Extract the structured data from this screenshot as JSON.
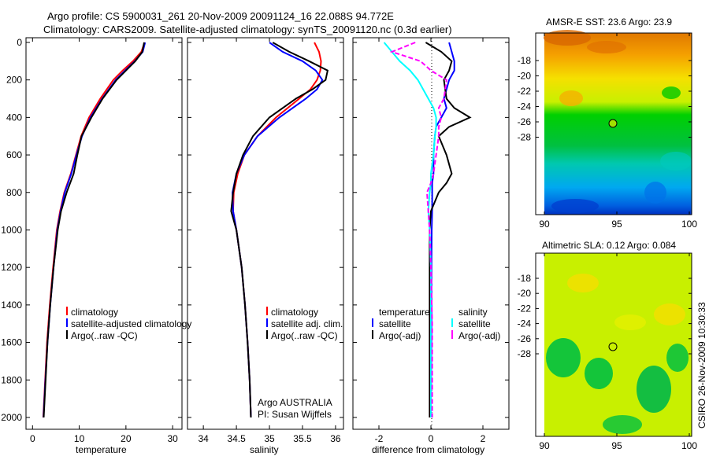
{
  "header": {
    "line1": "Argo profile: CS 5900031_261 20-Nov-2009 20091124_16 22.088S 94.772E",
    "line2": "Climatology: CARS2009. Satellite-adjusted climatology: synTS_20091120.nc (0.3d earlier)"
  },
  "side_stamp": "CSIRO 26-Nov-2009 10:30:33",
  "credit": {
    "line1": "Argo AUSTRALIA",
    "line2": "PI: Susan Wijffels"
  },
  "chart_data": [
    {
      "type": "line",
      "xlabel": "temperature",
      "ylabel": "",
      "xlim": [
        -1.4,
        32
      ],
      "ylim": [
        2063,
        -25
      ],
      "xticks": [
        "0",
        "10",
        "20",
        "30"
      ],
      "xtick_values": [
        0,
        10,
        20,
        30
      ],
      "yticks": [
        "0",
        "200",
        "400",
        "600",
        "800",
        "1000",
        "1200",
        "1400",
        "1600",
        "1800",
        "2000"
      ],
      "ytick_values": [
        0,
        200,
        400,
        600,
        800,
        1000,
        1200,
        1400,
        1600,
        1800,
        2000
      ],
      "legend": [
        "climatology",
        "satellite-adjusted climatology",
        "Argo(..raw -QC)"
      ],
      "depth": [
        0,
        50,
        100,
        150,
        200,
        300,
        400,
        500,
        600,
        700,
        800,
        900,
        1000,
        1200,
        1400,
        1600,
        1800,
        2000
      ],
      "series": [
        {
          "name": "climatology",
          "color": "#ff0000",
          "values": [
            24.0,
            23.3,
            21.5,
            19.3,
            17.3,
            14.5,
            12.1,
            10.4,
            9.3,
            8.2,
            6.8,
            5.9,
            5.2,
            4.4,
            3.7,
            3.1,
            2.7,
            2.3
          ]
        },
        {
          "name": "satellite-adjusted climatology",
          "color": "#0000ff",
          "values": [
            24.1,
            23.6,
            21.9,
            19.8,
            17.8,
            14.9,
            12.4,
            10.6,
            9.4,
            8.3,
            6.9,
            6.0,
            5.3,
            4.5,
            3.8,
            3.2,
            2.75,
            2.35
          ]
        },
        {
          "name": "Argo(..raw -QC)",
          "color": "#000000",
          "values": [
            23.9,
            23.5,
            22.0,
            20.0,
            18.0,
            15.0,
            12.6,
            10.5,
            9.6,
            8.8,
            7.3,
            6.1,
            5.4,
            4.5,
            3.8,
            3.2,
            2.8,
            2.4
          ]
        }
      ]
    },
    {
      "type": "line",
      "xlabel": "salinity",
      "xlim": [
        33.76,
        36.12
      ],
      "ylim": [
        2063,
        -25
      ],
      "xticks": [
        "34",
        "34.5",
        "35",
        "35.5",
        "36"
      ],
      "xtick_values": [
        34,
        34.5,
        35,
        35.5,
        36
      ],
      "legend": [
        "climatology",
        "satellite adj. clim.",
        "Argo(..raw -QC)"
      ],
      "depth": [
        0,
        50,
        100,
        150,
        200,
        250,
        300,
        400,
        500,
        600,
        700,
        800,
        900,
        1000,
        1200,
        1400,
        1600,
        1800,
        2000
      ],
      "series": [
        {
          "name": "climatology",
          "color": "#ff0000",
          "values": [
            35.68,
            35.75,
            35.78,
            35.77,
            35.72,
            35.62,
            35.45,
            35.1,
            34.82,
            34.62,
            34.52,
            34.46,
            34.45,
            34.5,
            34.58,
            34.63,
            34.67,
            34.7,
            34.72
          ]
        },
        {
          "name": "satellite adj. clim.",
          "color": "#0000ff",
          "values": [
            35.0,
            35.2,
            35.5,
            35.7,
            35.8,
            35.72,
            35.55,
            35.15,
            34.82,
            34.62,
            34.5,
            34.44,
            34.45,
            34.5,
            34.58,
            34.63,
            34.67,
            34.7,
            34.72
          ]
        },
        {
          "name": "Argo(..raw -QC)",
          "color": "#000000",
          "values": [
            35.05,
            35.3,
            35.6,
            35.88,
            35.85,
            35.65,
            35.4,
            35.0,
            34.75,
            34.6,
            34.5,
            34.45,
            34.42,
            34.5,
            34.58,
            34.63,
            34.67,
            34.7,
            34.72
          ]
        }
      ]
    },
    {
      "type": "line",
      "xlabel": "difference from climatology",
      "xlim": [
        -3,
        3
      ],
      "ylim": [
        2063,
        -25
      ],
      "xticks": [
        "-2",
        "0",
        "2"
      ],
      "xtick_values": [
        -2,
        0,
        2
      ],
      "legend_groups": [
        {
          "title": "temperature",
          "items": [
            "satellite",
            "Argo(-adj)"
          ]
        },
        {
          "title": "salinity",
          "items": [
            "satellite",
            "Argo(-adj)"
          ]
        }
      ],
      "depth": [
        0,
        50,
        100,
        150,
        200,
        300,
        350,
        400,
        450,
        500,
        600,
        700,
        750,
        800,
        900,
        1000,
        1200,
        1500,
        2000
      ],
      "series": [
        {
          "name": "temperature satellite",
          "color": "#0000ff",
          "values": [
            0.7,
            0.8,
            0.9,
            0.9,
            0.7,
            0.5,
            0.6,
            0.4,
            0.2,
            0.15,
            0.1,
            0.1,
            0.05,
            0.05,
            0.05,
            0.03,
            0.02,
            0.02,
            0.0
          ]
        },
        {
          "name": "temperature Argo(-adj)",
          "color": "#000000",
          "values": [
            -0.2,
            0.4,
            0.8,
            0.7,
            0.5,
            0.6,
            0.9,
            1.5,
            0.7,
            0.3,
            0.6,
            0.8,
            0.6,
            0.3,
            0.0,
            -0.05,
            -0.05,
            -0.05,
            -0.05
          ]
        },
        {
          "name": "salinity satellite",
          "color": "#00ffff",
          "values": [
            -1.8,
            -1.5,
            -1.2,
            -0.8,
            -0.5,
            -0.1,
            0.1,
            0.2,
            0.2,
            0.15,
            0.1,
            0.0,
            0.0,
            -0.05,
            -0.1,
            -0.05,
            0.0,
            0.0,
            0.0
          ]
        },
        {
          "name": "salinity Argo(-adj)",
          "color": "#ff00ff",
          "values": [
            -0.6,
            -1.5,
            -0.4,
            0.0,
            0.6,
            0.5,
            0.3,
            0.4,
            0.3,
            0.3,
            0.2,
            0.1,
            0.0,
            -0.15,
            -0.1,
            -0.05,
            0.0,
            0.05,
            0.05
          ]
        }
      ]
    },
    {
      "type": "heatmap",
      "title": "AMSR-E SST: 23.6 Argo: 23.9",
      "xlim": [
        90,
        100.2
      ],
      "ylim": [
        -28,
        -16.2
      ],
      "xticks": [
        "90",
        "95",
        "100"
      ],
      "yticks": [
        "-18",
        "-20",
        "-22",
        "-24",
        "-26",
        "-28"
      ],
      "marker": {
        "lon": 94.772,
        "lat": -22.088
      }
    },
    {
      "type": "heatmap",
      "title": "Altimetric SLA: 0.12 Argo: 0.084",
      "xlim": [
        90,
        100.2
      ],
      "ylim": [
        -28,
        -16.4
      ],
      "xticks": [
        "90",
        "95",
        "100"
      ],
      "yticks": [
        "-18",
        "-20",
        "-22",
        "-24",
        "-26",
        "-28"
      ],
      "marker": {
        "lon": 94.772,
        "lat": -22.088
      }
    }
  ]
}
